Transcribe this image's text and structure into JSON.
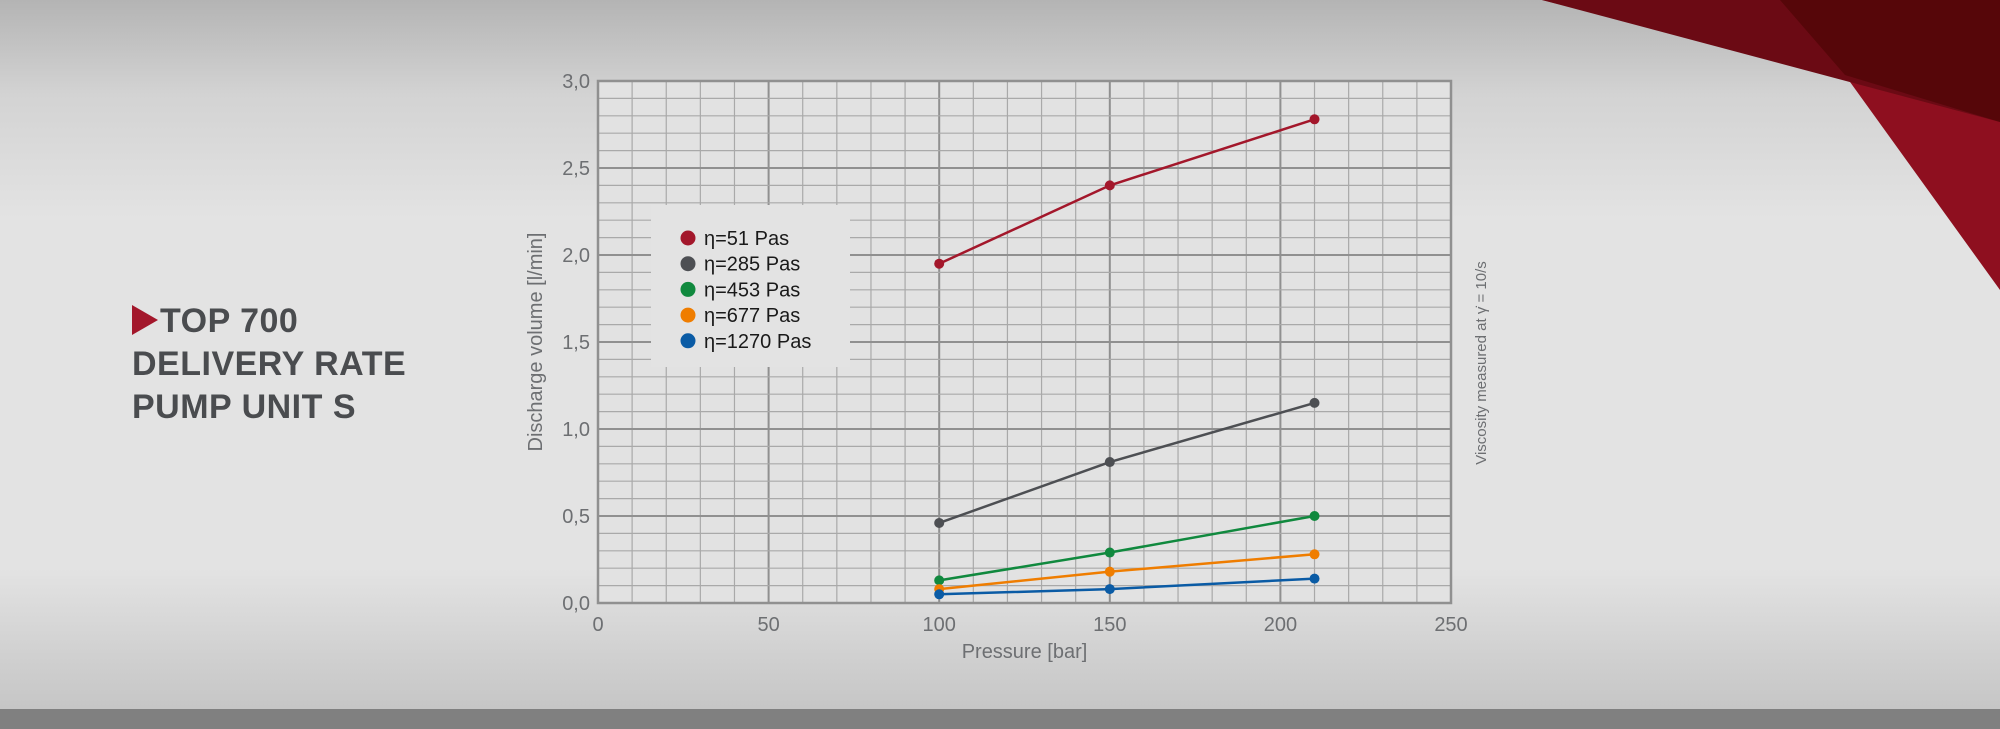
{
  "heading": {
    "line1": "TOP 700",
    "line2": "DELIVERY RATE",
    "line3": "PUMP UNIT S"
  },
  "colors": {
    "accent": "#a3172b",
    "accent_dark": "#5a0a10",
    "text": "#4a4c4f"
  },
  "icons": {
    "title_marker": "triangle-right-icon"
  },
  "chart_data": {
    "type": "line",
    "title": "",
    "xlabel": "Pressure [bar]",
    "ylabel": "Discharge volume [l/min]",
    "side_note": "Viscosity measured at γ̇ = 10/s",
    "xlim": [
      0,
      250
    ],
    "ylim": [
      0,
      3.0
    ],
    "xticks": [
      0,
      50,
      100,
      150,
      200,
      250
    ],
    "xtick_labels": [
      "0",
      "50",
      "100",
      "150",
      "200",
      "250"
    ],
    "yticks": [
      0,
      0.5,
      1.0,
      1.5,
      2.0,
      2.5,
      3.0
    ],
    "ytick_labels": [
      "0,0",
      "0,5",
      "1,0",
      "1,5",
      "2,0",
      "2,5",
      "3,0"
    ],
    "grid": true,
    "legend_position": "upper-left",
    "x": [
      100,
      150,
      210
    ],
    "series": [
      {
        "name": "η=51 Pas",
        "color": "#a3172b",
        "values": [
          1.95,
          2.4,
          2.78
        ]
      },
      {
        "name": "η=285 Pas",
        "color": "#4d4f53",
        "values": [
          0.46,
          0.81,
          1.15
        ]
      },
      {
        "name": "η=453 Pas",
        "color": "#10893e",
        "values": [
          0.13,
          0.29,
          0.5
        ]
      },
      {
        "name": "η=677 Pas",
        "color": "#ef7d00",
        "values": [
          0.08,
          0.18,
          0.28
        ]
      },
      {
        "name": "η=1270 Pas",
        "color": "#0a5ba5",
        "values": [
          0.05,
          0.08,
          0.14
        ]
      }
    ]
  }
}
